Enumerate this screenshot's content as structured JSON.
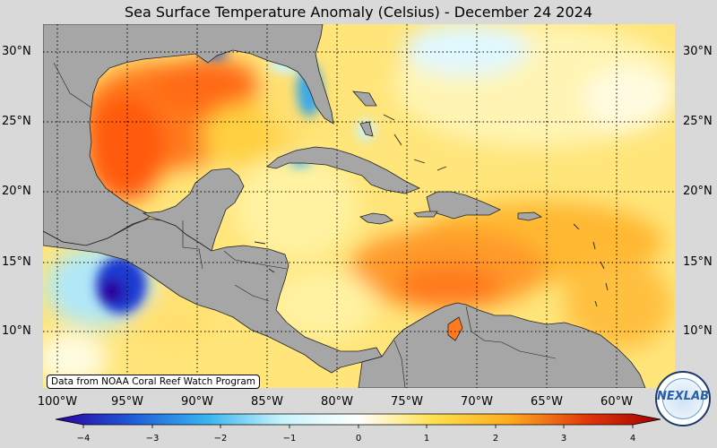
{
  "title": "Sea Surface Temperature Anomaly (Celsius) - December 24 2024",
  "credit": "Data from NOAA Coral Reef Watch Program",
  "logo_text": "NEXLAB",
  "latitude_labels": [
    "30°N",
    "25°N",
    "20°N",
    "15°N",
    "10°N"
  ],
  "longitude_labels": [
    "100°W",
    "95°W",
    "90°W",
    "85°W",
    "80°W",
    "75°W",
    "70°W",
    "65°W",
    "60°W"
  ],
  "colorbar": {
    "ticks": [
      "−4",
      "−3",
      "−2",
      "−1",
      "0",
      "1",
      "2",
      "3",
      "4"
    ],
    "min": -4,
    "max": 4,
    "colors": [
      "#2a00a0",
      "#1f5bd8",
      "#37b4f0",
      "#c9f4fb",
      "#ffffff",
      "#ffe04d",
      "#ffab1f",
      "#e23a0b",
      "#a00000"
    ]
  },
  "colors": {
    "land": "#a6a6a6",
    "background": "#d9d9d9"
  }
}
